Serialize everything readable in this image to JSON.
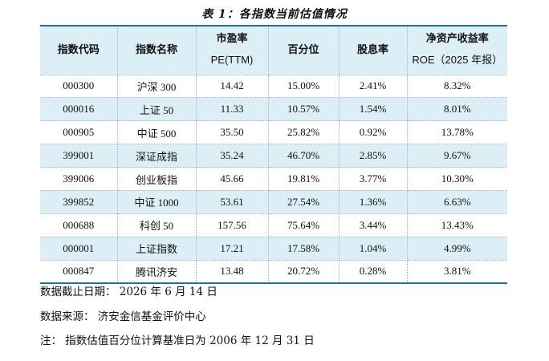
{
  "title": "表 1：各指数当前估值情况",
  "headers": [
    {
      "l1": "指数代码",
      "l2": ""
    },
    {
      "l1": "指数名称",
      "l2": ""
    },
    {
      "l1": "市盈率",
      "l2": "PE(TTM)"
    },
    {
      "l1": "百分位",
      "l2": ""
    },
    {
      "l1": "股息率",
      "l2": ""
    },
    {
      "l1": "净资产收益率",
      "l2": "ROE（2025 年报）"
    }
  ],
  "rows": [
    [
      "000300",
      "沪深 300",
      "14.42",
      "15.00%",
      "2.41%",
      "8.32%"
    ],
    [
      "000016",
      "上证 50",
      "11.33",
      "10.57%",
      "1.54%",
      "8.01%"
    ],
    [
      "000905",
      "中证 500",
      "35.50",
      "25.82%",
      "0.92%",
      "13.78%"
    ],
    [
      "399001",
      "深证成指",
      "35.24",
      "46.70%",
      "2.85%",
      "9.67%"
    ],
    [
      "399006",
      "创业板指",
      "45.66",
      "19.81%",
      "3.77%",
      "10.30%"
    ],
    [
      "399852",
      "中证 1000",
      "53.61",
      "27.54%",
      "1.36%",
      "6.63%"
    ],
    [
      "000688",
      "科创 50",
      "157.56",
      "75.64%",
      "3.44%",
      "13.43%"
    ],
    [
      "000001",
      "上证指数",
      "17.21",
      "17.58%",
      "1.04%",
      "4.99%"
    ],
    [
      "000847",
      "腾讯济安",
      "13.48",
      "20.72%",
      "0.28%",
      "3.81%"
    ]
  ],
  "notes": {
    "date": "数据截止日期： 2026 年 6 月 14 日",
    "source": "数据来源： 济安金信基金评价中心",
    "remark": "注： 指数估值百分位计算基准日为 2006 年 12 月 31 日"
  }
}
